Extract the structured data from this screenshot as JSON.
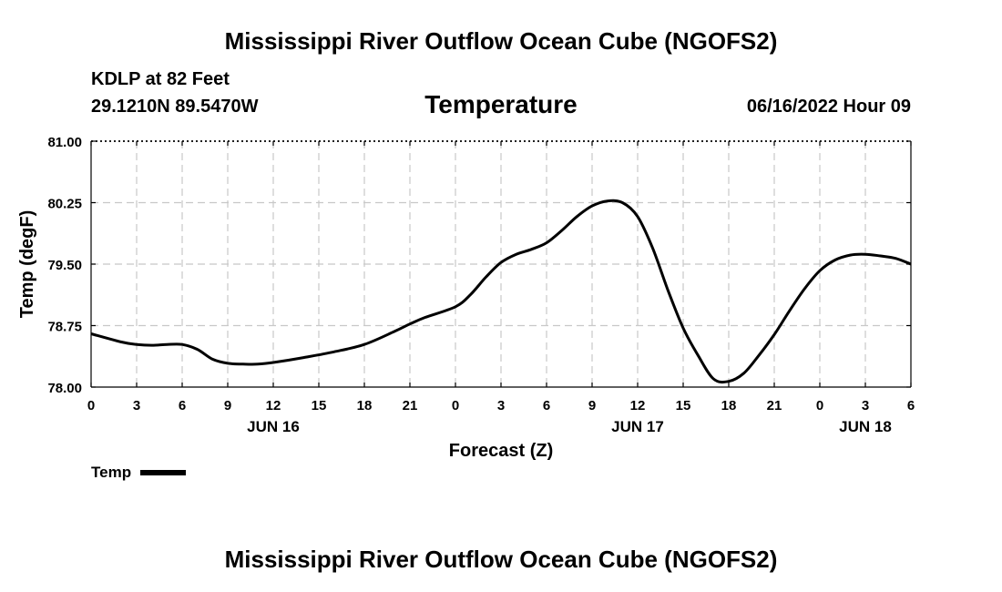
{
  "header": {
    "title": "Mississippi River Outflow Ocean Cube (NGOFS2)",
    "station": "KDLP at 82 Feet",
    "coords": "29.1210N  89.5470W",
    "subtitle": "Temperature",
    "datetime": "06/16/2022 Hour 09"
  },
  "footer": {
    "title": "Mississippi River Outflow Ocean Cube (NGOFS2)"
  },
  "legend": {
    "label": "Temp"
  },
  "colors": {
    "line": "#000000",
    "grid": "#c8c8c8",
    "axis": "#000000"
  },
  "chart_data": {
    "type": "line",
    "title": "Temperature",
    "xlabel": "Forecast (Z)",
    "ylabel": "Temp (degF)",
    "xlim": [
      0,
      54
    ],
    "ylim": [
      78.0,
      81.0
    ],
    "yticks": [
      78.0,
      78.75,
      79.5,
      80.25,
      81.0
    ],
    "ytick_labels": [
      "78.00",
      "78.75",
      "79.50",
      "80.25",
      "81.00"
    ],
    "xticks": [
      0,
      3,
      6,
      9,
      12,
      15,
      18,
      21,
      24,
      27,
      30,
      33,
      36,
      39,
      42,
      45,
      48,
      51,
      54
    ],
    "xtick_labels": [
      "0",
      "3",
      "6",
      "9",
      "12",
      "15",
      "18",
      "21",
      "0",
      "3",
      "6",
      "9",
      "12",
      "15",
      "18",
      "21",
      "0",
      "3",
      "6"
    ],
    "day_labels": [
      {
        "x": 12,
        "label": "JUN 16"
      },
      {
        "x": 36,
        "label": "JUN 17"
      },
      {
        "x": 51,
        "label": "JUN 18"
      }
    ],
    "grid": true,
    "series": [
      {
        "name": "Temp",
        "x": [
          0,
          2,
          3,
          4,
          5,
          6,
          7,
          8,
          9,
          10,
          11,
          12,
          14,
          16,
          18,
          20,
          21,
          22,
          24,
          25,
          26,
          27,
          28,
          29,
          30,
          31,
          32,
          33,
          34,
          35,
          36,
          37,
          38,
          39,
          40,
          41,
          42,
          43,
          44,
          45,
          46,
          47,
          48,
          49,
          50,
          51,
          52,
          53,
          54
        ],
        "values": [
          78.65,
          78.55,
          78.52,
          78.51,
          78.52,
          78.52,
          78.46,
          78.34,
          78.29,
          78.28,
          78.28,
          78.3,
          78.36,
          78.43,
          78.52,
          78.68,
          78.77,
          78.85,
          78.98,
          79.13,
          79.34,
          79.52,
          79.62,
          79.68,
          79.76,
          79.91,
          80.08,
          80.21,
          80.27,
          80.25,
          80.08,
          79.69,
          79.18,
          78.72,
          78.38,
          78.1,
          78.07,
          78.17,
          78.39,
          78.64,
          78.93,
          79.2,
          79.42,
          79.55,
          79.61,
          79.62,
          79.6,
          79.57,
          79.5
        ]
      }
    ]
  }
}
